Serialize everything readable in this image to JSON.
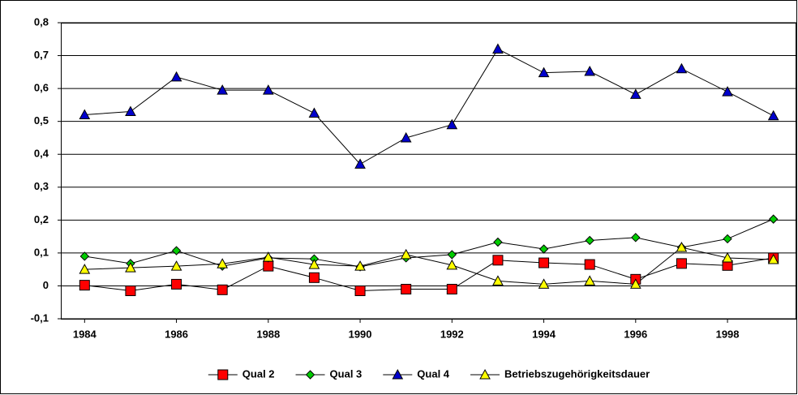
{
  "chart_data": {
    "type": "line",
    "x": [
      1984,
      1985,
      1986,
      1987,
      1988,
      1989,
      1990,
      1991,
      1992,
      1993,
      1994,
      1995,
      1996,
      1997,
      1998,
      1999
    ],
    "xlim": [
      1983.5,
      1999.5
    ],
    "xticks": [
      1984,
      1986,
      1988,
      1990,
      1992,
      1994,
      1996,
      1998
    ],
    "ylim": [
      -0.1,
      0.8
    ],
    "yticks": [
      {
        "value": -0.1,
        "label": "-0,1"
      },
      0,
      {
        "value": 0.1,
        "label": "0,1"
      },
      {
        "value": 0.2,
        "label": "0,2"
      },
      {
        "value": 0.3,
        "label": "0,3"
      },
      {
        "value": 0.4,
        "label": "0,4"
      },
      {
        "value": 0.5,
        "label": "0,5"
      },
      {
        "value": 0.6,
        "label": "0,6"
      },
      {
        "value": 0.7,
        "label": "0,7"
      },
      {
        "value": 0.8,
        "label": "0,8"
      }
    ],
    "grid": true,
    "legend": "bottom",
    "series": [
      {
        "name": "Qual 2",
        "color": "#ff0000",
        "marker": "square",
        "values": [
          0.002,
          -0.015,
          0.005,
          -0.012,
          0.06,
          0.025,
          -0.015,
          -0.01,
          -0.01,
          0.078,
          0.07,
          0.065,
          0.02,
          0.068,
          0.062,
          0.085
        ]
      },
      {
        "name": "Qual 3",
        "color": "#00cc00",
        "marker": "diamond",
        "values": [
          0.09,
          0.068,
          0.107,
          0.06,
          0.085,
          0.082,
          0.058,
          0.085,
          0.095,
          0.133,
          0.112,
          0.138,
          0.147,
          0.117,
          0.143,
          0.203
        ]
      },
      {
        "name": "Qual 4",
        "color": "#0000cc",
        "marker": "triangle",
        "values": [
          0.52,
          0.53,
          0.635,
          0.595,
          0.595,
          0.525,
          0.37,
          0.45,
          0.49,
          0.72,
          0.648,
          0.652,
          0.582,
          0.66,
          0.59,
          0.517
        ]
      },
      {
        "name": "Betriebszugehörigkeitsdauer",
        "color": "#ffff00",
        "marker": "triangle",
        "values": [
          0.05,
          0.055,
          0.06,
          0.067,
          0.087,
          0.065,
          0.06,
          0.095,
          0.063,
          0.015,
          0.005,
          0.015,
          0.005,
          0.117,
          0.085,
          0.08
        ]
      }
    ]
  }
}
